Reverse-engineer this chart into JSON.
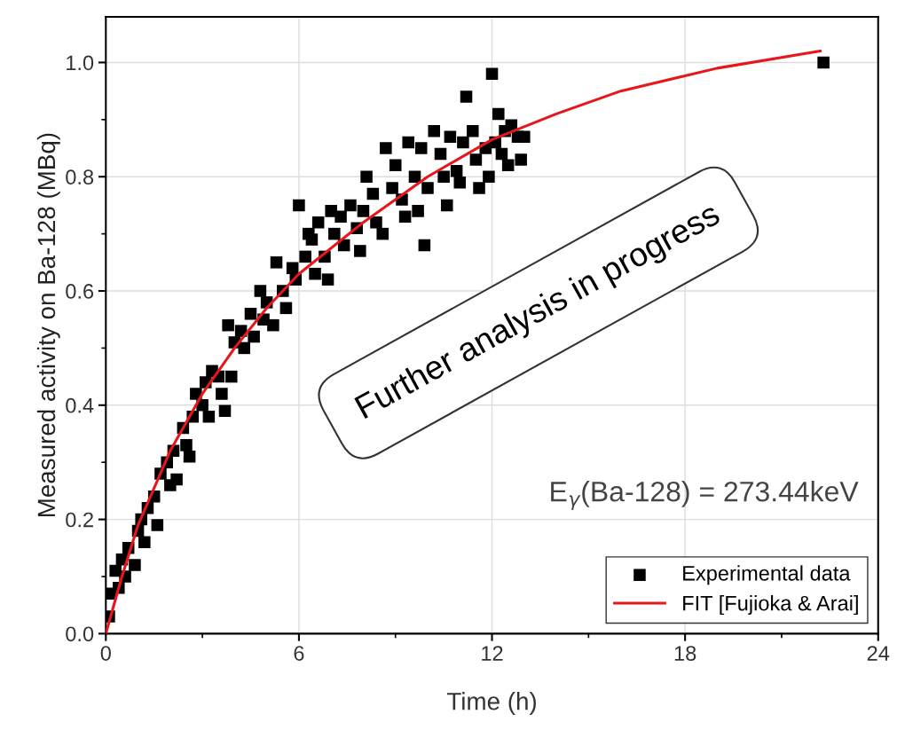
{
  "chart_data": {
    "type": "scatter",
    "xlabel": "Time (h)",
    "ylabel": "Measured activity on Ba-128 (MBq)",
    "xlim": [
      0,
      24
    ],
    "xticks": [
      0,
      6,
      12,
      18,
      24
    ],
    "ylim": [
      0,
      1.08
    ],
    "yticks": [
      {
        "value": 0,
        "label": "0.0"
      },
      {
        "value": 0.2,
        "label": "0.2"
      },
      {
        "value": 0.4,
        "label": "0.4"
      },
      {
        "value": 0.6,
        "label": "0.6"
      },
      {
        "value": 0.8,
        "label": "0.8"
      },
      {
        "value": 1.0,
        "label": "1.0"
      }
    ],
    "grid": true,
    "legend": "bottom right",
    "annotations": [
      "Further analysis in progress",
      "E$_{γ}$(Ba-128) = 273.44keV"
    ],
    "series": [
      {
        "name": "Experimental data",
        "marker": "square",
        "color": "#000000",
        "x": [
          0.1,
          0.15,
          0.3,
          0.4,
          0.5,
          0.6,
          0.7,
          0.9,
          1.0,
          1.1,
          1.2,
          1.3,
          1.5,
          1.6,
          1.7,
          1.9,
          2.0,
          2.1,
          2.2,
          2.4,
          2.5,
          2.6,
          2.7,
          2.8,
          3.0,
          3.1,
          3.2,
          3.3,
          3.5,
          3.6,
          3.7,
          3.8,
          3.9,
          4.0,
          4.2,
          4.3,
          4.5,
          4.6,
          4.8,
          4.9,
          5.0,
          5.2,
          5.3,
          5.5,
          5.6,
          5.8,
          5.9,
          6.0,
          6.2,
          6.3,
          6.4,
          6.5,
          6.6,
          6.8,
          6.9,
          7.0,
          7.1,
          7.3,
          7.4,
          7.6,
          7.8,
          7.9,
          8.0,
          8.1,
          8.3,
          8.4,
          8.6,
          8.7,
          8.9,
          9.0,
          9.2,
          9.3,
          9.4,
          9.6,
          9.7,
          9.8,
          9.9,
          10.0,
          10.2,
          10.4,
          10.5,
          10.6,
          10.7,
          10.9,
          11.0,
          11.1,
          11.2,
          11.4,
          11.5,
          11.6,
          11.8,
          11.9,
          12.0,
          12.1,
          12.2,
          12.3,
          12.4,
          12.5,
          12.6,
          12.8,
          12.9,
          13.0,
          22.3
        ],
        "values": [
          0.03,
          0.07,
          0.11,
          0.08,
          0.13,
          0.1,
          0.15,
          0.12,
          0.18,
          0.2,
          0.16,
          0.22,
          0.24,
          0.19,
          0.28,
          0.3,
          0.26,
          0.32,
          0.27,
          0.36,
          0.33,
          0.31,
          0.38,
          0.42,
          0.4,
          0.44,
          0.38,
          0.46,
          0.45,
          0.42,
          0.39,
          0.54,
          0.45,
          0.51,
          0.53,
          0.5,
          0.56,
          0.52,
          0.6,
          0.55,
          0.58,
          0.54,
          0.65,
          0.6,
          0.57,
          0.64,
          0.62,
          0.75,
          0.66,
          0.7,
          0.69,
          0.63,
          0.72,
          0.66,
          0.62,
          0.74,
          0.7,
          0.73,
          0.68,
          0.75,
          0.71,
          0.67,
          0.74,
          0.8,
          0.77,
          0.72,
          0.7,
          0.85,
          0.78,
          0.82,
          0.76,
          0.73,
          0.86,
          0.8,
          0.74,
          0.85,
          0.68,
          0.78,
          0.88,
          0.84,
          0.8,
          0.75,
          0.87,
          0.81,
          0.79,
          0.86,
          0.94,
          0.88,
          0.83,
          0.78,
          0.85,
          0.8,
          0.98,
          0.86,
          0.91,
          0.84,
          0.88,
          0.82,
          0.89,
          0.87,
          0.83,
          0.87,
          1.0
        ]
      },
      {
        "name": "FIT [Fujioka & Arai]",
        "type": "line",
        "marker": "none",
        "color": "#e8161b",
        "x": [
          0,
          0.5,
          1,
          2,
          3,
          4,
          5,
          6,
          8,
          10,
          12,
          14,
          16,
          19,
          22.2
        ],
        "values": [
          0,
          0.1,
          0.19,
          0.32,
          0.42,
          0.5,
          0.57,
          0.63,
          0.72,
          0.8,
          0.865,
          0.91,
          0.95,
          0.99,
          1.02
        ]
      }
    ]
  }
}
